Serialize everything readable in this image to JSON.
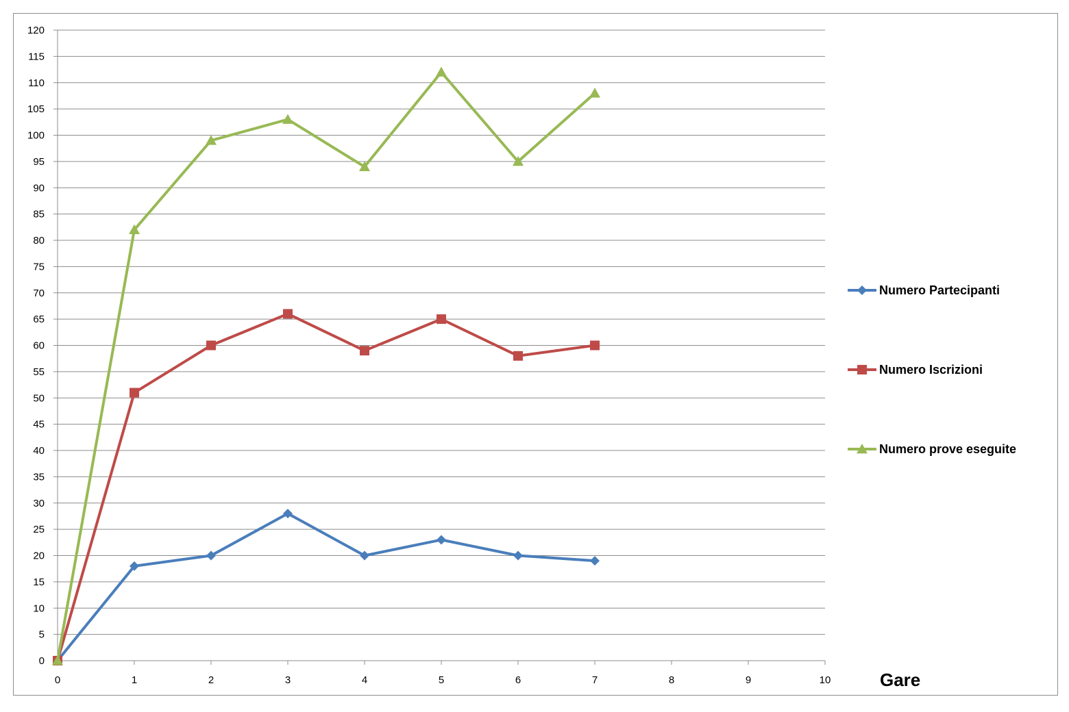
{
  "chart_data": {
    "type": "line",
    "title": "",
    "xlabel": "Gare",
    "ylabel": "",
    "xlim": [
      0,
      10
    ],
    "ylim": [
      0,
      120
    ],
    "x_ticks": [
      "0",
      "1",
      "2",
      "3",
      "4",
      "5",
      "6",
      "7",
      "8",
      "9",
      "10"
    ],
    "y_ticks": [
      "0",
      "5",
      "10",
      "15",
      "20",
      "25",
      "30",
      "35",
      "40",
      "45",
      "50",
      "55",
      "60",
      "65",
      "70",
      "75",
      "80",
      "85",
      "90",
      "95",
      "100",
      "105",
      "110",
      "115",
      "120"
    ],
    "grid": "horizontal",
    "legend_position": "right",
    "x": [
      0,
      1,
      2,
      3,
      4,
      5,
      6,
      7
    ],
    "series": [
      {
        "name": "Numero Partecipanti",
        "color": "#4a7ebb",
        "marker": "diamond",
        "values": [
          0,
          18,
          20,
          28,
          20,
          23,
          20,
          19
        ]
      },
      {
        "name": "Numero Iscrizioni",
        "color": "#be4b48",
        "marker": "square",
        "values": [
          0,
          51,
          60,
          66,
          59,
          65,
          58,
          60
        ]
      },
      {
        "name": "Numero prove eseguite",
        "color": "#98b954",
        "marker": "triangle",
        "values": [
          0,
          82,
          99,
          103,
          94,
          112,
          95,
          108
        ]
      }
    ]
  }
}
